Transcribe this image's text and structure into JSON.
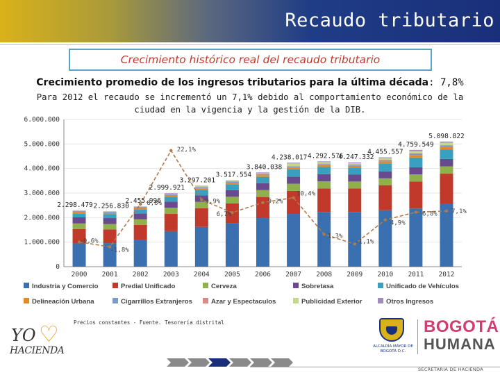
{
  "header": {
    "title": "Recaudo tributario"
  },
  "subtitle": "Crecimiento histórico real del recaudo tributario",
  "average": {
    "label": "Crecimiento promedio de los ingresos tributarios para la última década",
    "value": ": 7,8%"
  },
  "description": "Para 2012 el recaudo se incrementó un 7,1% debido al comportamiento económico de la ciudad en la vigencia y la gestión de la DIB.",
  "footnote": "Precios constantes -   Fuente.  Tesorería distrital",
  "logos": {
    "yo": "YO",
    "hacienda": "HACIENDA",
    "crest_text": "ALCALDÍA MAYOR DE BOGOTÁ D.C.",
    "bogota": "BOGOTÁ",
    "humana": "HUMANA",
    "secretaria": "SECRETARÍA DE HACIENDA"
  },
  "colors": {
    "header_left": "#d9b21a",
    "header_right": "#1a2f7a",
    "subtitle": "#c0392b",
    "box_border": "#5aa3c8",
    "growth_line": "#b07a4a"
  },
  "chart_data": {
    "type": "bar",
    "stacked": true,
    "categories": [
      "2000",
      "2001",
      "2002",
      "2003",
      "2004",
      "2005",
      "2006",
      "2007",
      "2008",
      "2009",
      "2010",
      "2011",
      "2012"
    ],
    "ylim": [
      0,
      6000000
    ],
    "yticks": [
      "0",
      "1.000.000",
      "2.000.000",
      "3.000.000",
      "4.000.000",
      "5.000.000",
      "6.000.000"
    ],
    "ytick_values": [
      0,
      1000000,
      2000000,
      3000000,
      4000000,
      5000000,
      6000000
    ],
    "totals": [
      2298479,
      2256830,
      2455996,
      2999921,
      3297201,
      3517554,
      3840038,
      4238017,
      4292576,
      4247332,
      4455557,
      4759549,
      5098822
    ],
    "total_labels": [
      "2.298.479",
      "2.256.830",
      "2.455.996",
      "2.999.921",
      "3.297.201",
      "3.517.554",
      "3.840.038",
      "4.238.017",
      "4.292.576",
      "4.247.332",
      "4.455.557",
      "4.759.549",
      "5.098.822"
    ],
    "series": [
      {
        "name": "Industria y Comercio",
        "color": "#3a6fb0",
        "values": [
          950000,
          960000,
          1080000,
          1450000,
          1620000,
          1780000,
          1980000,
          2150000,
          2230000,
          2230000,
          2300000,
          2370000,
          2560000
        ]
      },
      {
        "name": "Predial Unificado",
        "color": "#c0392b",
        "values": [
          580000,
          560000,
          620000,
          700000,
          760000,
          800000,
          860000,
          940000,
          960000,
          960000,
          1020000,
          1100000,
          1230000
        ]
      },
      {
        "name": "Cerveza",
        "color": "#8fb04a",
        "values": [
          230000,
          220000,
          230000,
          250000,
          260000,
          270000,
          280000,
          290000,
          290000,
          280000,
          280000,
          290000,
          300000
        ]
      },
      {
        "name": "Sobretasa",
        "color": "#6a4a8f",
        "values": [
          250000,
          240000,
          240000,
          250000,
          260000,
          270000,
          280000,
          290000,
          290000,
          280000,
          280000,
          290000,
          300000
        ]
      },
      {
        "name": "Unificado de Vehículos",
        "color": "#3aa0c0",
        "values": [
          160000,
          160000,
          170000,
          200000,
          230000,
          240000,
          260000,
          290000,
          290000,
          290000,
          330000,
          400000,
          390000
        ]
      },
      {
        "name": "Delineación Urbana",
        "color": "#e28a2a",
        "values": [
          40000,
          40000,
          40000,
          50000,
          60000,
          60000,
          70000,
          80000,
          80000,
          70000,
          80000,
          100000,
          100000
        ]
      },
      {
        "name": "Cigarrillos Extranjeros",
        "color": "#7b9cc9",
        "values": [
          40000,
          40000,
          40000,
          40000,
          40000,
          40000,
          40000,
          40000,
          40000,
          40000,
          40000,
          50000,
          50000
        ]
      },
      {
        "name": "Azar y Espectaculos",
        "color": "#d98a88",
        "values": [
          20000,
          15000,
          15000,
          20000,
          20000,
          20000,
          20000,
          20000,
          20000,
          20000,
          20000,
          25000,
          25000
        ]
      },
      {
        "name": "Publicidad Exterior",
        "color": "#c4d88a",
        "values": [
          15000,
          12000,
          12000,
          20000,
          27000,
          17000,
          20000,
          108000,
          62000,
          47000,
          75000,
          84000,
          100000
        ]
      },
      {
        "name": "Otros Ingresos",
        "color": "#a08cc0",
        "values": [
          13479,
          9830,
          8996,
          19921,
          20201,
          20554,
          30038,
          30017,
          30576,
          30332,
          30557,
          50549,
          43822
        ]
      }
    ],
    "growth": {
      "values": [
        -0.6,
        -1.8,
        8.8,
        22.1,
        9.9,
        6.7,
        9.2,
        10.4,
        1.3,
        -1.1,
        4.9,
        6.8,
        7.1
      ],
      "labels": [
        "-0,6%",
        "-1,8%",
        "8,8%",
        "22,1%",
        "9,9%",
        "6,7%",
        "9,2%",
        "10,4%",
        "1,3%",
        "-1,1%",
        "4,9%",
        "6,8%",
        "7,1%"
      ],
      "ylim": [
        -5,
        25
      ]
    },
    "legend": {
      "placement": "bottom",
      "columns": 5
    }
  }
}
